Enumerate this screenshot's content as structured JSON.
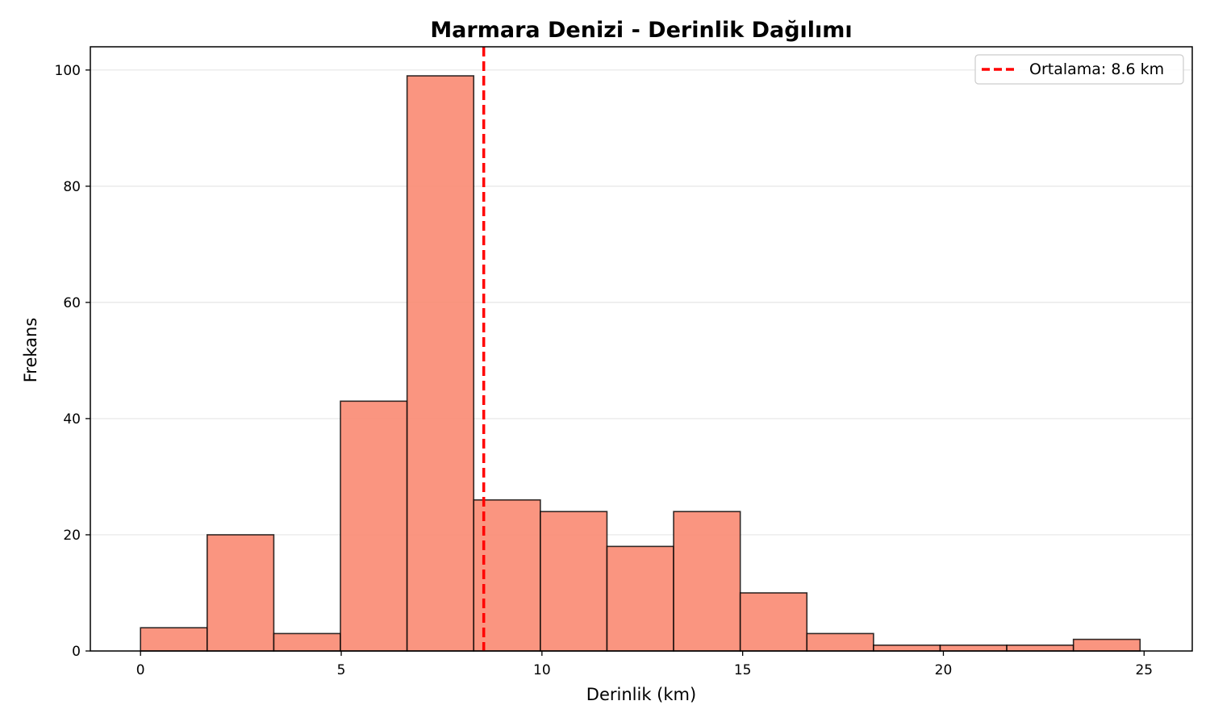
{
  "chart_data": {
    "type": "bar",
    "title": "Marmara Denizi - Derinlik Dağılımı",
    "xlabel": "Derinlik (km)",
    "ylabel": "Frekans",
    "xlim": [
      -1.25,
      26.2
    ],
    "ylim": [
      0,
      104
    ],
    "x_ticks": [
      0,
      5,
      10,
      15,
      20,
      25
    ],
    "y_ticks": [
      0,
      20,
      40,
      60,
      80,
      100
    ],
    "grid": "horizontal",
    "bin_edges": [
      0,
      1.66,
      3.32,
      4.98,
      6.64,
      8.3,
      9.96,
      11.62,
      13.28,
      14.94,
      16.6,
      18.26,
      19.92,
      21.58,
      23.24,
      24.9
    ],
    "counts": [
      4,
      20,
      3,
      43,
      99,
      26,
      24,
      18,
      24,
      10,
      3,
      1,
      1,
      1,
      2
    ],
    "bar_color": "#fa8a72",
    "bar_edge_color": "#000000",
    "mean_line": {
      "x": 8.55,
      "label": "Ortalama: 8.6 km",
      "color": "#ff0000",
      "style": "dashed"
    },
    "legend_position": "top-right"
  }
}
